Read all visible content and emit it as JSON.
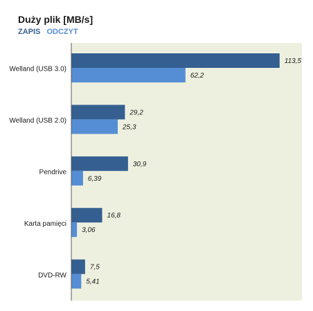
{
  "chart_data": {
    "type": "bar",
    "orientation": "horizontal",
    "title": "Duży plik [MB/s]",
    "categories": [
      "Welland (USB 3.0)",
      "Welland (USB 2.0)",
      "Pendrive",
      "Karta pamięci",
      "DVD-RW"
    ],
    "series": [
      {
        "name": "ZAPIS",
        "color": "#365f91",
        "values": [
          113.5,
          29.2,
          30.9,
          16.8,
          7.5
        ],
        "labels": [
          "113,5",
          "29,2",
          "30,9",
          "16,8",
          "7,5"
        ]
      },
      {
        "name": "ODCZYT",
        "color": "#558ed5",
        "values": [
          62.2,
          25.3,
          6.39,
          3.06,
          5.41
        ],
        "labels": [
          "62,2",
          "25,3",
          "6,39",
          "3,06",
          "5,41"
        ]
      }
    ],
    "xlim": [
      0,
      120
    ],
    "plot_background": "#eef0df",
    "grid": false,
    "legend_position": "top-left"
  }
}
